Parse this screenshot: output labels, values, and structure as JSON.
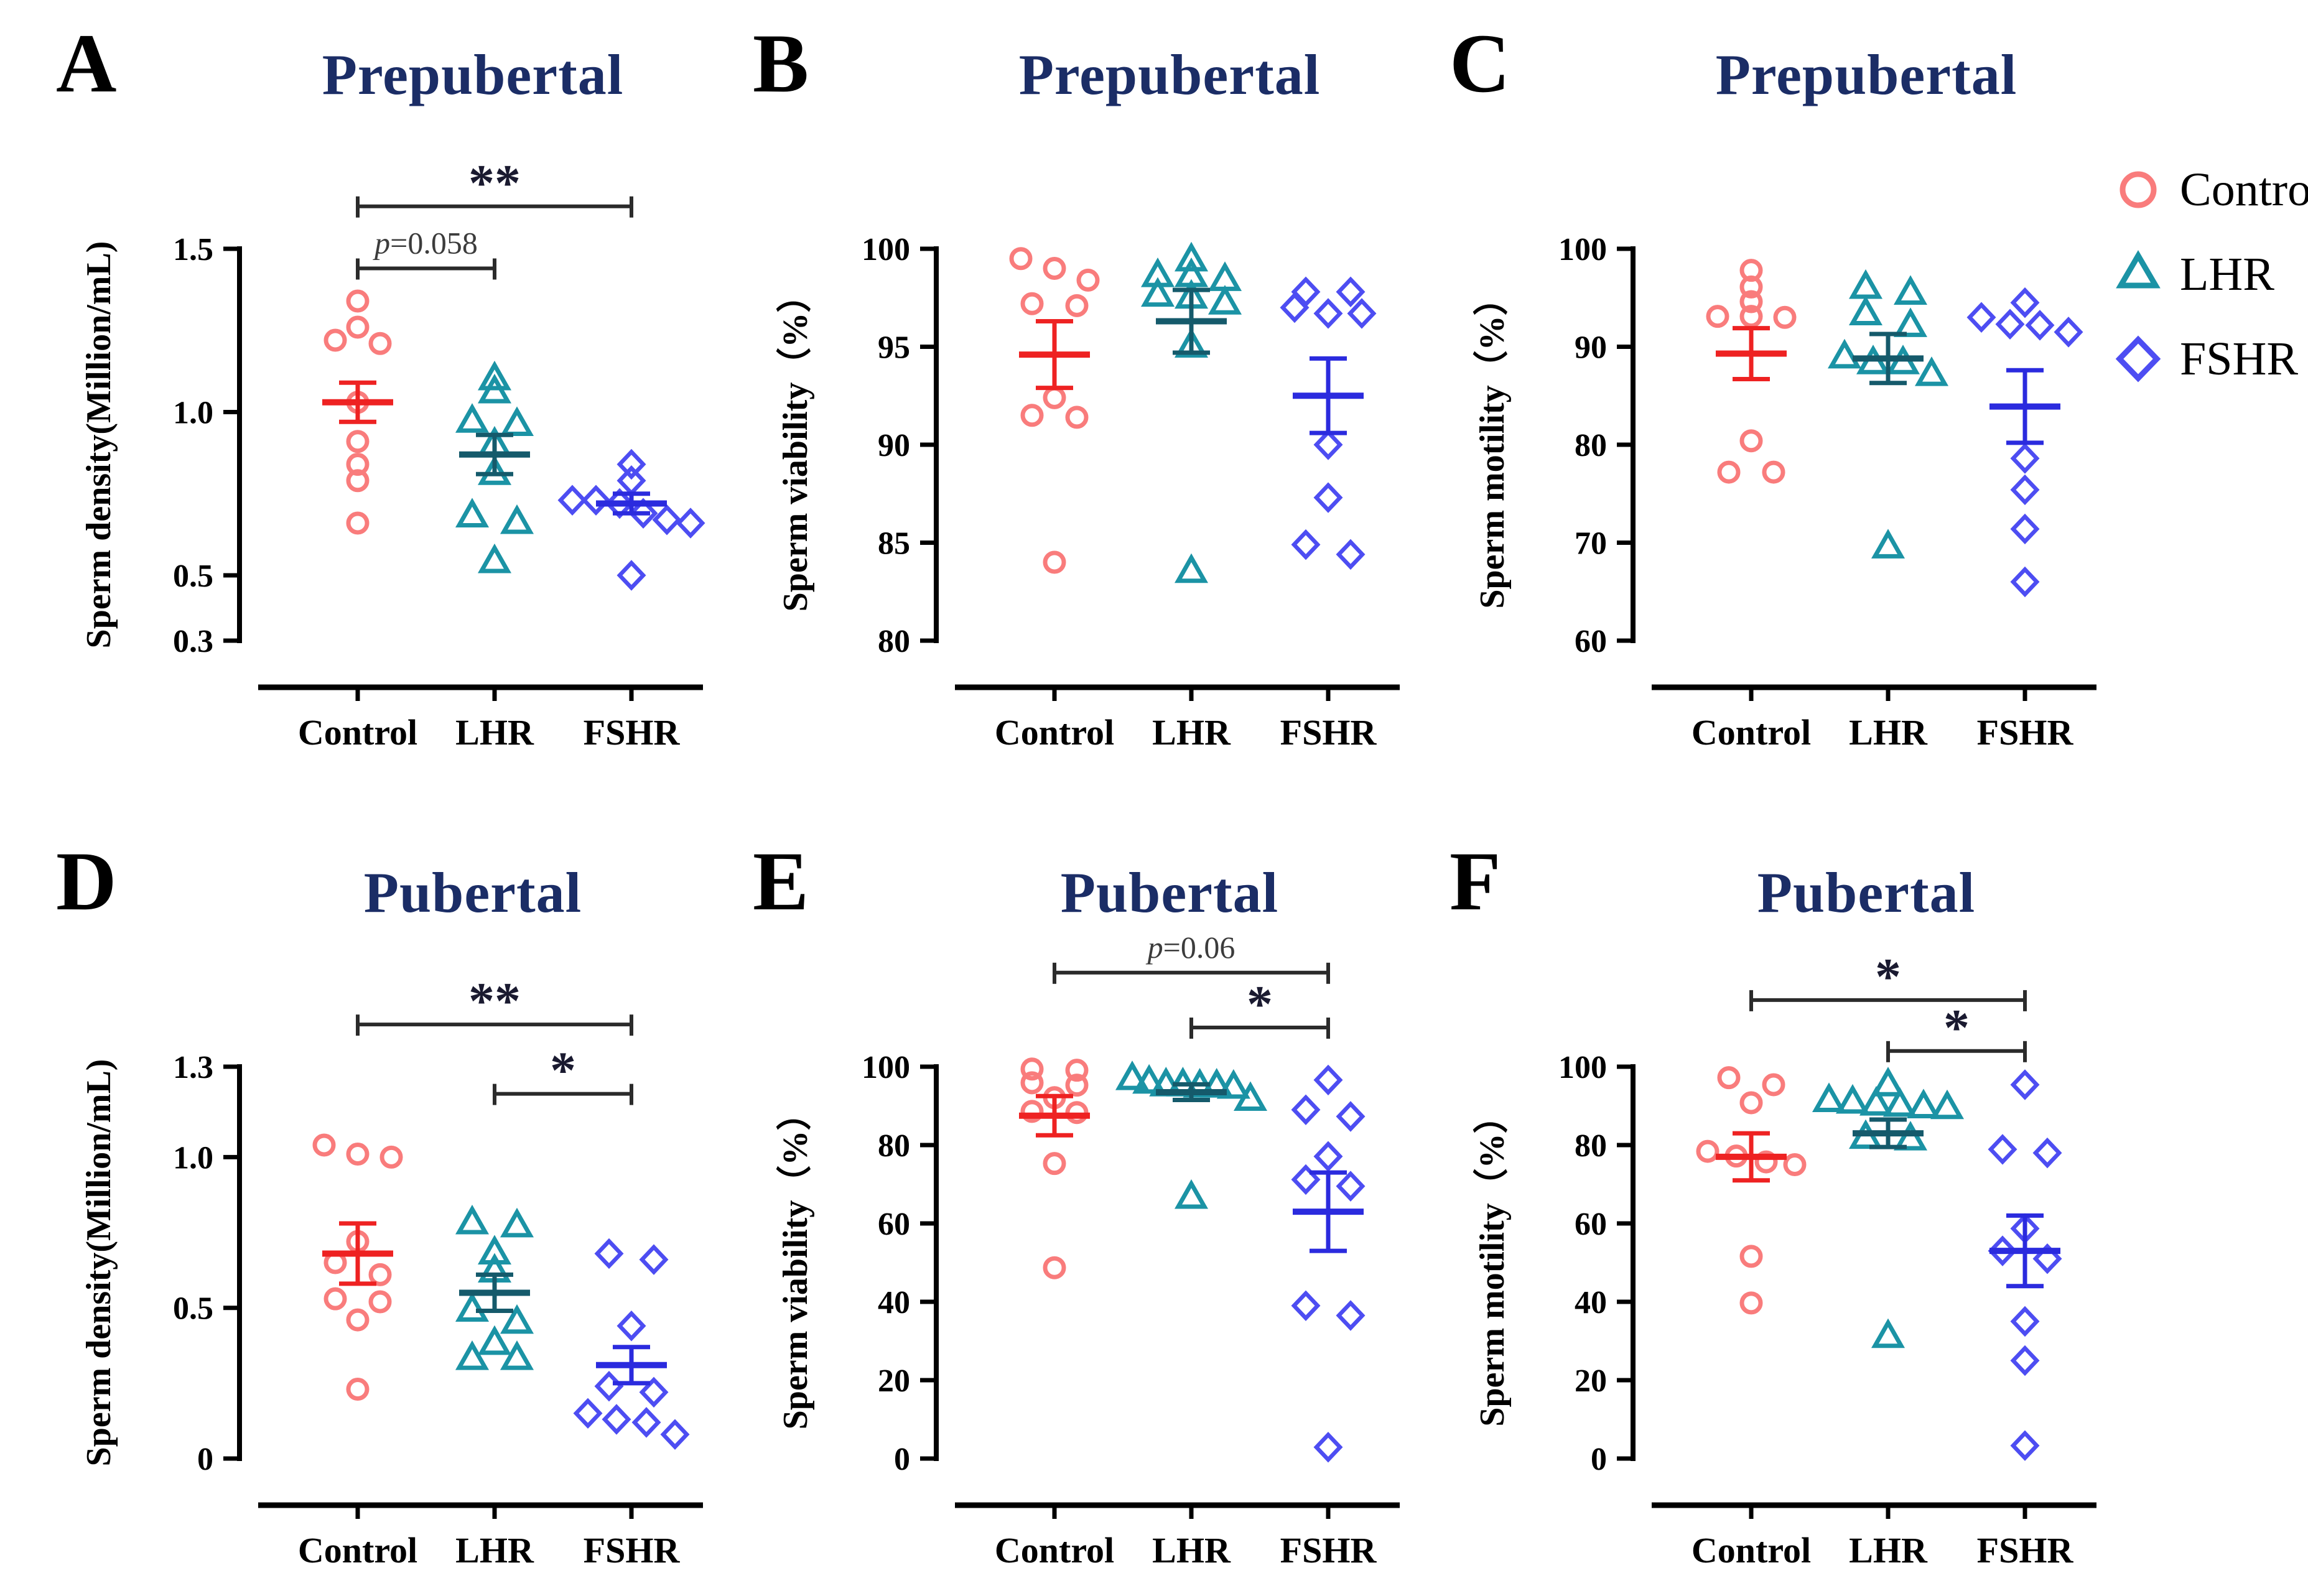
{
  "figure": {
    "legend": {
      "items": [
        {
          "label": "Control",
          "marker": "circle",
          "color": "#F97C7C"
        },
        {
          "label": "LHR",
          "marker": "triangle",
          "color": "#1B93A5"
        },
        {
          "label": "FSHR",
          "marker": "diamond",
          "color": "#4D4DF2"
        }
      ]
    },
    "colors": {
      "title_navy": "#1B2D66",
      "axis_black": "#000000",
      "sig_bar": "#2B2B2B",
      "sig_star": "#1A1A30",
      "p_text": "#3C3C3C"
    }
  },
  "chart_data": [
    {
      "type": "scatter",
      "letter": "A",
      "title": "Prepubertal",
      "ylabel": "Sperm density(Million/mL)",
      "ylim": [
        0.3,
        1.5
      ],
      "ytick_vals": [
        0.3,
        0.5,
        1.0,
        1.5
      ],
      "ytick_labels": [
        "0.3",
        "0.5",
        "1.0",
        "1.5"
      ],
      "categories": [
        "Control",
        "LHR",
        "FSHR"
      ],
      "series": [
        {
          "name": "Control",
          "marker": "circle",
          "color": "#F97C7C",
          "mean_color": "#EE2222",
          "values": [
            1.34,
            1.26,
            1.22,
            1.21,
            1.03,
            0.91,
            0.84,
            0.79,
            0.66
          ],
          "mean": 1.03,
          "sem": 0.06
        },
        {
          "name": "LHR",
          "marker": "triangle",
          "color": "#1B93A5",
          "mean_color": "#155A6B",
          "values": [
            1.1,
            1.06,
            0.97,
            0.96,
            0.9,
            0.81,
            0.68,
            0.66,
            0.54
          ],
          "mean": 0.87,
          "sem": 0.06
        },
        {
          "name": "FSHR",
          "marker": "diamond",
          "color": "#4D4DF2",
          "mean_color": "#2B2BDE",
          "values": [
            0.84,
            0.79,
            0.73,
            0.73,
            0.72,
            0.69,
            0.67,
            0.66,
            0.5
          ],
          "mean": 0.72,
          "sem": 0.03
        }
      ],
      "significance": [
        {
          "from": 0,
          "to": 2,
          "label": "**",
          "y": 1.63
        },
        {
          "from": 0,
          "to": 1,
          "label": "p=0.058",
          "y": 1.44
        }
      ]
    },
    {
      "type": "scatter",
      "letter": "B",
      "title": "Prepubertal",
      "ylabel": "Sperm viability（%）",
      "ylim": [
        80,
        100
      ],
      "ytick_vals": [
        80,
        85,
        90,
        95,
        100
      ],
      "ytick_labels": [
        "80",
        "85",
        "90",
        "95",
        "100"
      ],
      "categories": [
        "Control",
        "LHR",
        "FSHR"
      ],
      "series": [
        {
          "name": "Control",
          "marker": "circle",
          "color": "#F97C7C",
          "mean_color": "#EE2222",
          "values": [
            99.5,
            99.0,
            98.4,
            97.2,
            97.1,
            92.4,
            91.5,
            91.4,
            84.0
          ],
          "mean": 94.6,
          "sem": 1.7
        },
        {
          "name": "LHR",
          "marker": "triangle",
          "color": "#1B93A5",
          "mean_color": "#155A6B",
          "values": [
            99.4,
            98.6,
            98.6,
            98.4,
            97.6,
            97.5,
            97.2,
            95.0,
            83.5
          ],
          "mean": 96.3,
          "sem": 1.6
        },
        {
          "name": "FSHR",
          "marker": "diamond",
          "color": "#4D4DF2",
          "mean_color": "#2B2BDE",
          "values": [
            97.8,
            97.8,
            97.0,
            96.7,
            96.7,
            90.0,
            87.3,
            84.9,
            84.4
          ],
          "mean": 92.5,
          "sem": 1.9
        }
      ],
      "significance": []
    },
    {
      "type": "scatter",
      "letter": "C",
      "title": "Prepubertal",
      "ylabel": "Sperm motility（%）",
      "ylim": [
        60,
        100
      ],
      "ytick_vals": [
        60,
        70,
        80,
        90,
        100
      ],
      "ytick_labels": [
        "60",
        "70",
        "80",
        "90",
        "100"
      ],
      "categories": [
        "Control",
        "LHR",
        "FSHR"
      ],
      "series": [
        {
          "name": "Control",
          "marker": "circle",
          "color": "#F97C7C",
          "mean_color": "#EE2222",
          "values": [
            97.8,
            96.1,
            94.6,
            93.1,
            93.1,
            93.0,
            80.4,
            77.2,
            77.2
          ],
          "mean": 89.3,
          "sem": 2.6
        },
        {
          "name": "LHR",
          "marker": "triangle",
          "color": "#1B93A5",
          "mean_color": "#155A6B",
          "values": [
            96.0,
            95.4,
            93.3,
            92.1,
            88.9,
            88.3,
            88.3,
            87.1,
            69.5
          ],
          "mean": 88.8,
          "sem": 2.5
        },
        {
          "name": "FSHR",
          "marker": "diamond",
          "color": "#4D4DF2",
          "mean_color": "#2B2BDE",
          "values": [
            94.5,
            93.0,
            92.3,
            92.2,
            91.5,
            78.6,
            75.4,
            71.4,
            66.0
          ],
          "mean": 83.9,
          "sem": 3.7
        }
      ],
      "significance": []
    },
    {
      "type": "scatter",
      "letter": "D",
      "title": "Pubertal",
      "ylabel": "Sperm density(Million/mL)",
      "ylim": [
        0,
        1.3
      ],
      "ytick_vals": [
        0,
        0.5,
        1.0,
        1.3
      ],
      "ytick_labels": [
        "0",
        "0.5",
        "1.0",
        "1.3"
      ],
      "categories": [
        "Control",
        "LHR",
        "FSHR"
      ],
      "series": [
        {
          "name": "Control",
          "marker": "circle",
          "color": "#F97C7C",
          "mean_color": "#EE2222",
          "values": [
            1.04,
            1.01,
            1.0,
            0.72,
            0.65,
            0.61,
            0.53,
            0.52,
            0.46,
            0.23
          ],
          "mean": 0.68,
          "sem": 0.1
        },
        {
          "name": "LHR",
          "marker": "triangle",
          "color": "#1B93A5",
          "mean_color": "#155A6B",
          "values": [
            0.78,
            0.77,
            0.68,
            0.62,
            0.49,
            0.45,
            0.38,
            0.33,
            0.33
          ],
          "mean": 0.55,
          "sem": 0.06
        },
        {
          "name": "FSHR",
          "marker": "diamond",
          "color": "#4D4DF2",
          "mean_color": "#2B2BDE",
          "values": [
            0.68,
            0.66,
            0.44,
            0.24,
            0.22,
            0.15,
            0.13,
            0.12,
            0.08
          ],
          "mean": 0.31,
          "sem": 0.06
        }
      ],
      "significance": [
        {
          "from": 0,
          "to": 2,
          "label": "**",
          "y": 1.44
        },
        {
          "from": 1,
          "to": 2,
          "label": "*",
          "y": 1.21
        }
      ]
    },
    {
      "type": "scatter",
      "letter": "E",
      "title": "Pubertal",
      "ylabel": "Sperm viability（%）",
      "ylim": [
        0,
        100
      ],
      "ytick_vals": [
        0,
        20,
        40,
        60,
        80,
        100
      ],
      "ytick_labels": [
        "0",
        "20",
        "40",
        "60",
        "80",
        "100"
      ],
      "categories": [
        "Control",
        "LHR",
        "FSHR"
      ],
      "series": [
        {
          "name": "Control",
          "marker": "circle",
          "color": "#F97C7C",
          "mean_color": "#EE2222",
          "values": [
            99.4,
            99.1,
            95.9,
            95.3,
            92.1,
            88.6,
            88.3,
            75.3,
            48.7
          ],
          "mean": 87.5,
          "sem": 5.0
        },
        {
          "name": "LHR",
          "marker": "triangle",
          "color": "#1B93A5",
          "mean_color": "#155A6B",
          "values": [
            96.8,
            95.9,
            95.2,
            95.2,
            94.9,
            94.9,
            94.6,
            91.5,
            66.5
          ],
          "mean": 93.5,
          "sem": 2.0
        },
        {
          "name": "FSHR",
          "marker": "diamond",
          "color": "#4D4DF2",
          "mean_color": "#2B2BDE",
          "values": [
            96.6,
            89.0,
            87.3,
            77.1,
            71.2,
            69.5,
            39.0,
            36.5,
            2.9
          ],
          "mean": 63.0,
          "sem": 10.0
        }
      ],
      "significance": [
        {
          "from": 0,
          "to": 2,
          "label": "p=0.06",
          "y": 124
        },
        {
          "from": 1,
          "to": 2,
          "label": "*",
          "y": 110
        }
      ]
    },
    {
      "type": "scatter",
      "letter": "F",
      "title": "Pubertal",
      "ylabel": "Sperm motility（%）",
      "ylim": [
        0,
        100
      ],
      "ytick_vals": [
        0,
        20,
        40,
        60,
        80,
        100
      ],
      "ytick_labels": [
        "0",
        "20",
        "40",
        "60",
        "80",
        "100"
      ],
      "categories": [
        "Control",
        "LHR",
        "FSHR"
      ],
      "series": [
        {
          "name": "Control",
          "marker": "circle",
          "color": "#F97C7C",
          "mean_color": "#EE2222",
          "values": [
            97.2,
            95.4,
            90.8,
            78.4,
            77.2,
            75.7,
            75.0,
            51.6,
            39.7
          ],
          "mean": 77.0,
          "sem": 6.0
        },
        {
          "name": "LHR",
          "marker": "triangle",
          "color": "#1B93A5",
          "mean_color": "#155A6B",
          "values": [
            95.2,
            91.2,
            90.8,
            90.3,
            90.0,
            89.6,
            89.4,
            81.8,
            81.4,
            31.0
          ],
          "mean": 83.0,
          "sem": 3.5
        },
        {
          "name": "FSHR",
          "marker": "diamond",
          "color": "#4D4DF2",
          "mean_color": "#2B2BDE",
          "values": [
            95.4,
            78.9,
            78.0,
            58.7,
            53.0,
            51.0,
            35.0,
            25.0,
            3.3
          ],
          "mean": 53.0,
          "sem": 9.0
        }
      ],
      "significance": [
        {
          "from": 0,
          "to": 2,
          "label": "*",
          "y": 117
        },
        {
          "from": 1,
          "to": 2,
          "label": "*",
          "y": 104
        }
      ]
    }
  ]
}
